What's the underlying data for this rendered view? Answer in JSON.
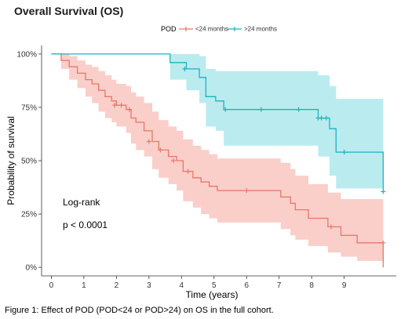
{
  "chart_data": {
    "type": "line",
    "subtype": "kaplan-meier-step",
    "title": "Overall Survival (OS)",
    "xlabel": "Time (years)",
    "ylabel": "Probability of survival",
    "xlim": [
      -0.3,
      10.6
    ],
    "ylim": [
      -0.04,
      1.04
    ],
    "x_ticks": [
      0,
      1,
      2,
      3,
      4,
      5,
      6,
      7,
      8,
      9
    ],
    "x_tick_labels": [
      "0",
      "1",
      "2",
      "3",
      "4",
      "5",
      "6",
      "7",
      "8",
      "9"
    ],
    "y_ticks": [
      0,
      0.25,
      0.5,
      0.75,
      1.0
    ],
    "y_tick_labels": [
      "0%",
      "25%",
      "50%",
      "75%",
      "100%"
    ],
    "grid": false,
    "legend_title": "POD",
    "legend_position": "top",
    "annotations": [
      "Log-rank",
      "p < 0.0001"
    ],
    "series": [
      {
        "name": "<24 months",
        "color": "#e8776b",
        "band_color": "#f9c6c0",
        "steps": [
          [
            0,
            1.0
          ],
          [
            0.3,
            0.97
          ],
          [
            0.55,
            0.94
          ],
          [
            0.8,
            0.91
          ],
          [
            1.05,
            0.88
          ],
          [
            1.25,
            0.86
          ],
          [
            1.45,
            0.83
          ],
          [
            1.65,
            0.8
          ],
          [
            1.85,
            0.78
          ],
          [
            2.0,
            0.76
          ],
          [
            2.3,
            0.74
          ],
          [
            2.45,
            0.7
          ],
          [
            2.6,
            0.68
          ],
          [
            2.85,
            0.64
          ],
          [
            3.1,
            0.59
          ],
          [
            3.3,
            0.55
          ],
          [
            3.6,
            0.52
          ],
          [
            3.85,
            0.5
          ],
          [
            4.05,
            0.45
          ],
          [
            4.35,
            0.42
          ],
          [
            4.6,
            0.4
          ],
          [
            4.85,
            0.38
          ],
          [
            5.1,
            0.36
          ],
          [
            7.05,
            0.33
          ],
          [
            7.35,
            0.3
          ],
          [
            7.5,
            0.27
          ],
          [
            7.9,
            0.23
          ],
          [
            8.5,
            0.19
          ],
          [
            8.9,
            0.15
          ],
          [
            9.4,
            0.115
          ],
          [
            10.2,
            0.0
          ]
        ],
        "lower": [
          [
            0,
            1.0
          ],
          [
            0.3,
            0.93
          ],
          [
            0.55,
            0.88
          ],
          [
            0.8,
            0.84
          ],
          [
            1.05,
            0.8
          ],
          [
            1.25,
            0.77
          ],
          [
            1.45,
            0.73
          ],
          [
            1.65,
            0.7
          ],
          [
            1.85,
            0.68
          ],
          [
            2.0,
            0.66
          ],
          [
            2.3,
            0.63
          ],
          [
            2.45,
            0.58
          ],
          [
            2.6,
            0.55
          ],
          [
            2.85,
            0.52
          ],
          [
            3.1,
            0.46
          ],
          [
            3.3,
            0.42
          ],
          [
            3.6,
            0.39
          ],
          [
            3.85,
            0.36
          ],
          [
            4.05,
            0.31
          ],
          [
            4.35,
            0.28
          ],
          [
            4.6,
            0.25
          ],
          [
            4.85,
            0.23
          ],
          [
            5.1,
            0.21
          ],
          [
            7.05,
            0.18
          ],
          [
            7.35,
            0.15
          ],
          [
            7.5,
            0.13
          ],
          [
            7.9,
            0.1
          ],
          [
            8.5,
            0.07
          ],
          [
            8.9,
            0.05
          ],
          [
            9.4,
            0.03
          ],
          [
            10.2,
            0.03
          ]
        ],
        "upper": [
          [
            0,
            1.0
          ],
          [
            0.3,
            1.0
          ],
          [
            0.55,
            0.99
          ],
          [
            0.8,
            0.97
          ],
          [
            1.05,
            0.95
          ],
          [
            1.25,
            0.94
          ],
          [
            1.45,
            0.92
          ],
          [
            1.65,
            0.9
          ],
          [
            1.85,
            0.88
          ],
          [
            2.0,
            0.86
          ],
          [
            2.3,
            0.85
          ],
          [
            2.45,
            0.82
          ],
          [
            2.6,
            0.8
          ],
          [
            2.85,
            0.77
          ],
          [
            3.1,
            0.73
          ],
          [
            3.3,
            0.69
          ],
          [
            3.6,
            0.66
          ],
          [
            3.85,
            0.64
          ],
          [
            4.05,
            0.6
          ],
          [
            4.35,
            0.57
          ],
          [
            4.6,
            0.55
          ],
          [
            4.85,
            0.53
          ],
          [
            5.1,
            0.51
          ],
          [
            7.05,
            0.49
          ],
          [
            7.35,
            0.46
          ],
          [
            7.5,
            0.43
          ],
          [
            7.9,
            0.39
          ],
          [
            8.5,
            0.35
          ],
          [
            8.9,
            0.32
          ],
          [
            9.4,
            0.32
          ],
          [
            10.2,
            0.32
          ]
        ],
        "censored": [
          [
            1.95,
            0.76
          ],
          [
            2.15,
            0.76
          ],
          [
            2.4,
            0.74
          ],
          [
            3.0,
            0.59
          ],
          [
            3.35,
            0.55
          ],
          [
            3.75,
            0.5
          ],
          [
            4.2,
            0.45
          ],
          [
            6.0,
            0.36
          ],
          [
            8.6,
            0.19
          ],
          [
            10.2,
            0.115
          ]
        ],
        "end_x": 10.2
      },
      {
        "name": ">24 months",
        "color": "#1bb3c0",
        "band_color": "#aee8ec",
        "steps": [
          [
            0,
            1.0
          ],
          [
            3.65,
            0.96
          ],
          [
            4.15,
            0.93
          ],
          [
            4.55,
            0.89
          ],
          [
            4.75,
            0.8
          ],
          [
            5.05,
            0.78
          ],
          [
            5.3,
            0.74
          ],
          [
            8.2,
            0.7
          ],
          [
            8.55,
            0.65
          ],
          [
            8.75,
            0.54
          ],
          [
            10.2,
            0.355
          ]
        ],
        "lower": [
          [
            0,
            1.0
          ],
          [
            3.65,
            0.88
          ],
          [
            4.15,
            0.83
          ],
          [
            4.55,
            0.77
          ],
          [
            4.75,
            0.66
          ],
          [
            5.05,
            0.64
          ],
          [
            5.3,
            0.57
          ],
          [
            8.2,
            0.52
          ],
          [
            8.55,
            0.43
          ],
          [
            8.75,
            0.37
          ],
          [
            10.2,
            0.37
          ]
        ],
        "upper": [
          [
            0,
            1.0
          ],
          [
            3.65,
            1.0
          ],
          [
            4.15,
            1.0
          ],
          [
            4.55,
            0.99
          ],
          [
            4.75,
            0.93
          ],
          [
            5.05,
            0.92
          ],
          [
            5.3,
            0.92
          ],
          [
            8.2,
            0.9
          ],
          [
            8.55,
            0.85
          ],
          [
            8.75,
            0.79
          ],
          [
            10.2,
            0.79
          ]
        ],
        "censored": [
          [
            4.1,
            0.93
          ],
          [
            5.35,
            0.74
          ],
          [
            6.45,
            0.74
          ],
          [
            7.6,
            0.74
          ],
          [
            8.2,
            0.7
          ],
          [
            8.3,
            0.7
          ],
          [
            8.45,
            0.7
          ],
          [
            9.0,
            0.54
          ],
          [
            10.2,
            0.355
          ]
        ],
        "end_x": 10.2
      }
    ]
  },
  "caption": "Figure 1: Effect of POD (POD<24 or POD>24) on OS in the full cohort."
}
